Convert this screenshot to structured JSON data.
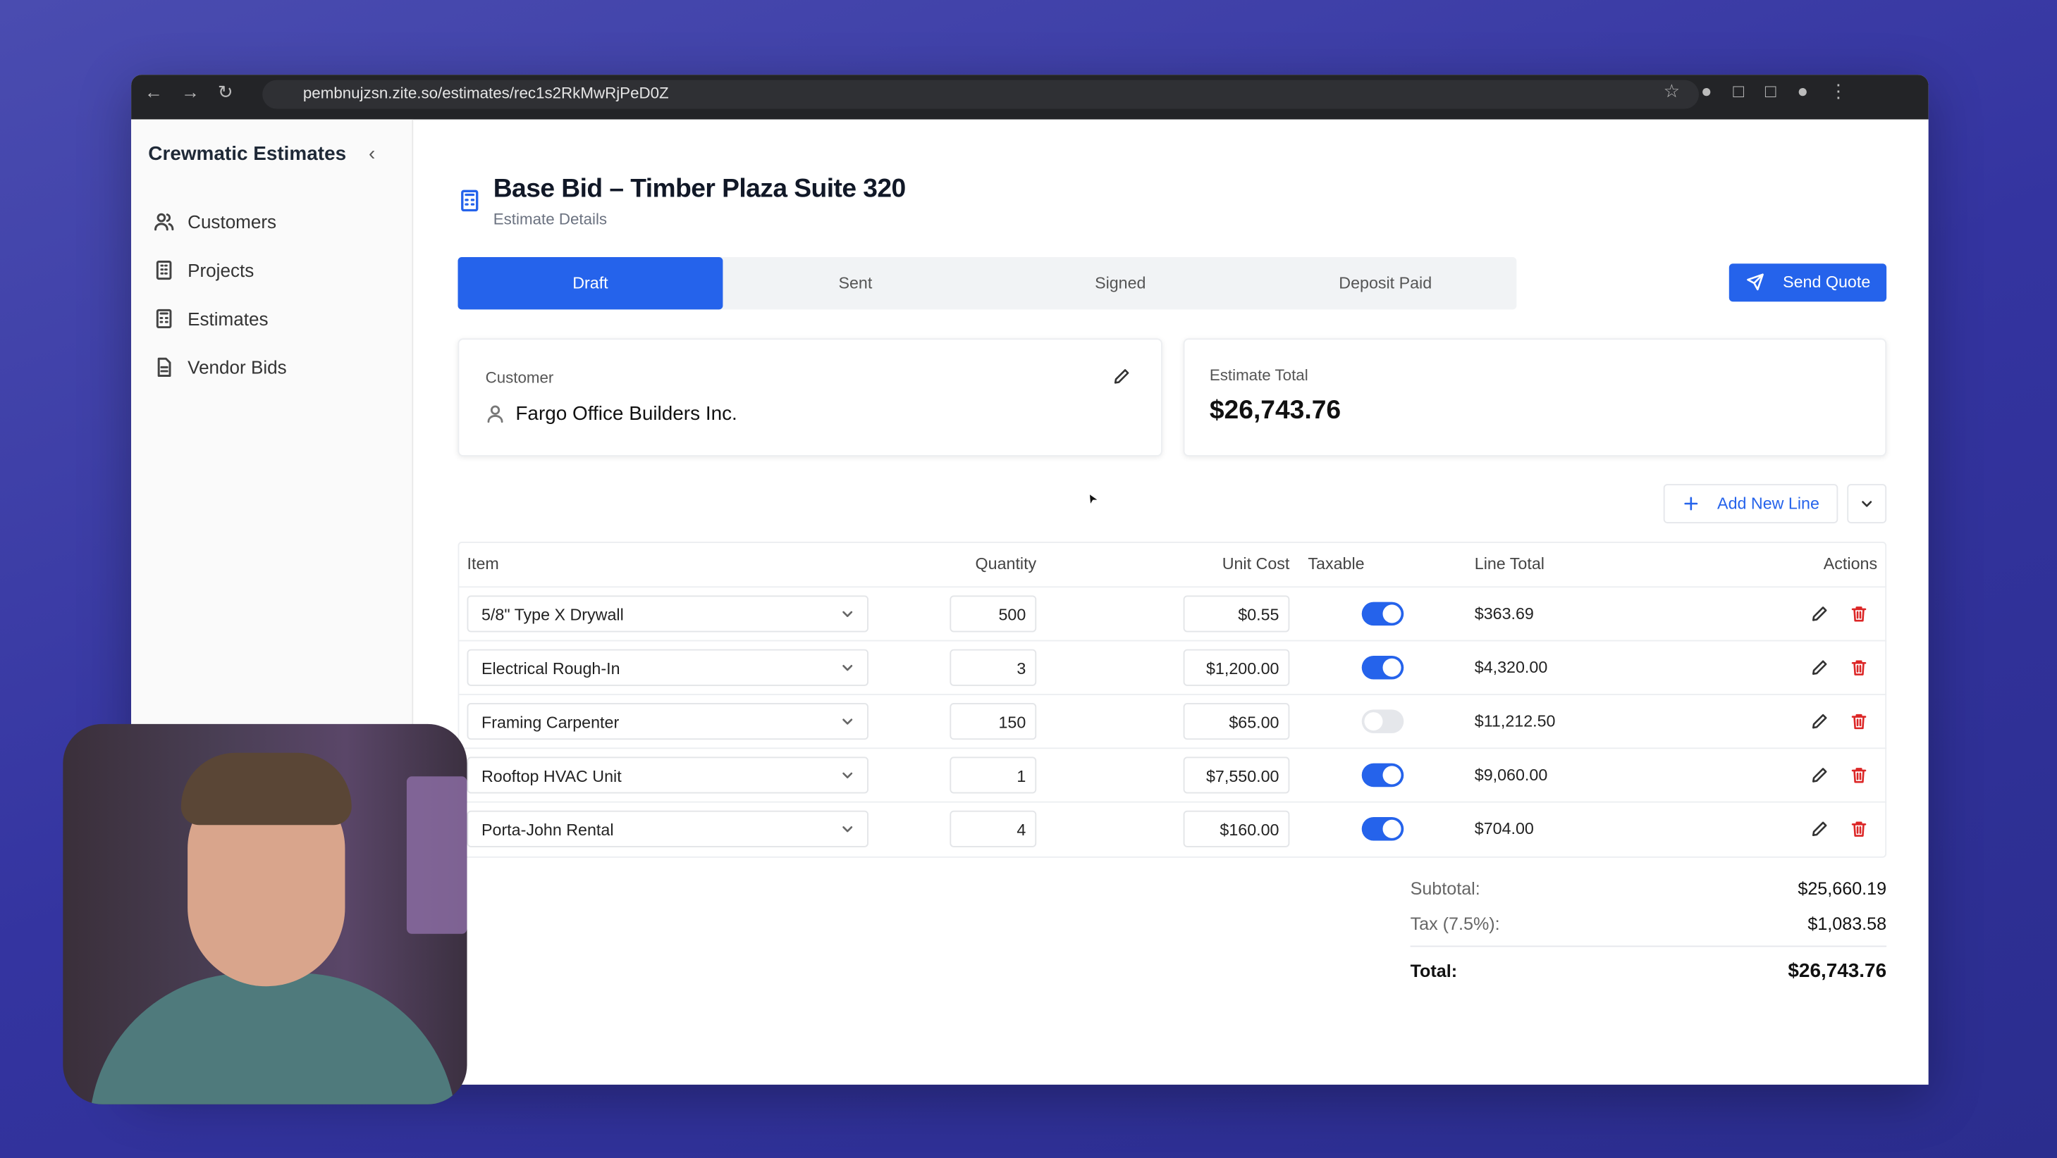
{
  "browser": {
    "url": "pembnujzsn.zite.so/estimates/rec1s2RkMwRjPeD0Z"
  },
  "sidebar": {
    "title": "Crewmatic Estimates",
    "nav": [
      "Customers",
      "Projects",
      "Estimates",
      "Vendor Bids"
    ]
  },
  "header": {
    "title": "Base Bid – Timber Plaza Suite 320",
    "subtitle": "Estimate Details"
  },
  "status_tabs": {
    "tabs": [
      "Draft",
      "Sent",
      "Signed",
      "Deposit Paid"
    ],
    "active": 0
  },
  "send_button": "Send Quote",
  "customer_card": {
    "label": "Customer",
    "name": "Fargo Office Builders Inc."
  },
  "total_card": {
    "label": "Estimate Total",
    "value": "$26,743.76"
  },
  "add_line_button": "Add New Line",
  "table": {
    "headers": [
      "Item",
      "Quantity",
      "Unit Cost",
      "Taxable",
      "Line Total",
      "Actions"
    ],
    "rows": [
      {
        "item": "5/8\" Type X Drywall",
        "quantity": "500",
        "unit_cost": "$0.55",
        "taxable": true,
        "line_total": "$363.69"
      },
      {
        "item": "Electrical Rough-In",
        "quantity": "3",
        "unit_cost": "$1,200.00",
        "taxable": true,
        "line_total": "$4,320.00"
      },
      {
        "item": "Framing Carpenter",
        "quantity": "150",
        "unit_cost": "$65.00",
        "taxable": false,
        "line_total": "$11,212.50"
      },
      {
        "item": "Rooftop HVAC Unit",
        "quantity": "1",
        "unit_cost": "$7,550.00",
        "taxable": true,
        "line_total": "$9,060.00"
      },
      {
        "item": "Porta-John Rental",
        "quantity": "4",
        "unit_cost": "$160.00",
        "taxable": true,
        "line_total": "$704.00"
      }
    ]
  },
  "summary": [
    {
      "label": "Subtotal:",
      "value": "$25,660.19"
    },
    {
      "label": "Tax (7.5%):",
      "value": "$1,083.58"
    },
    {
      "label": "Total:",
      "value": "$26,743.76"
    }
  ]
}
